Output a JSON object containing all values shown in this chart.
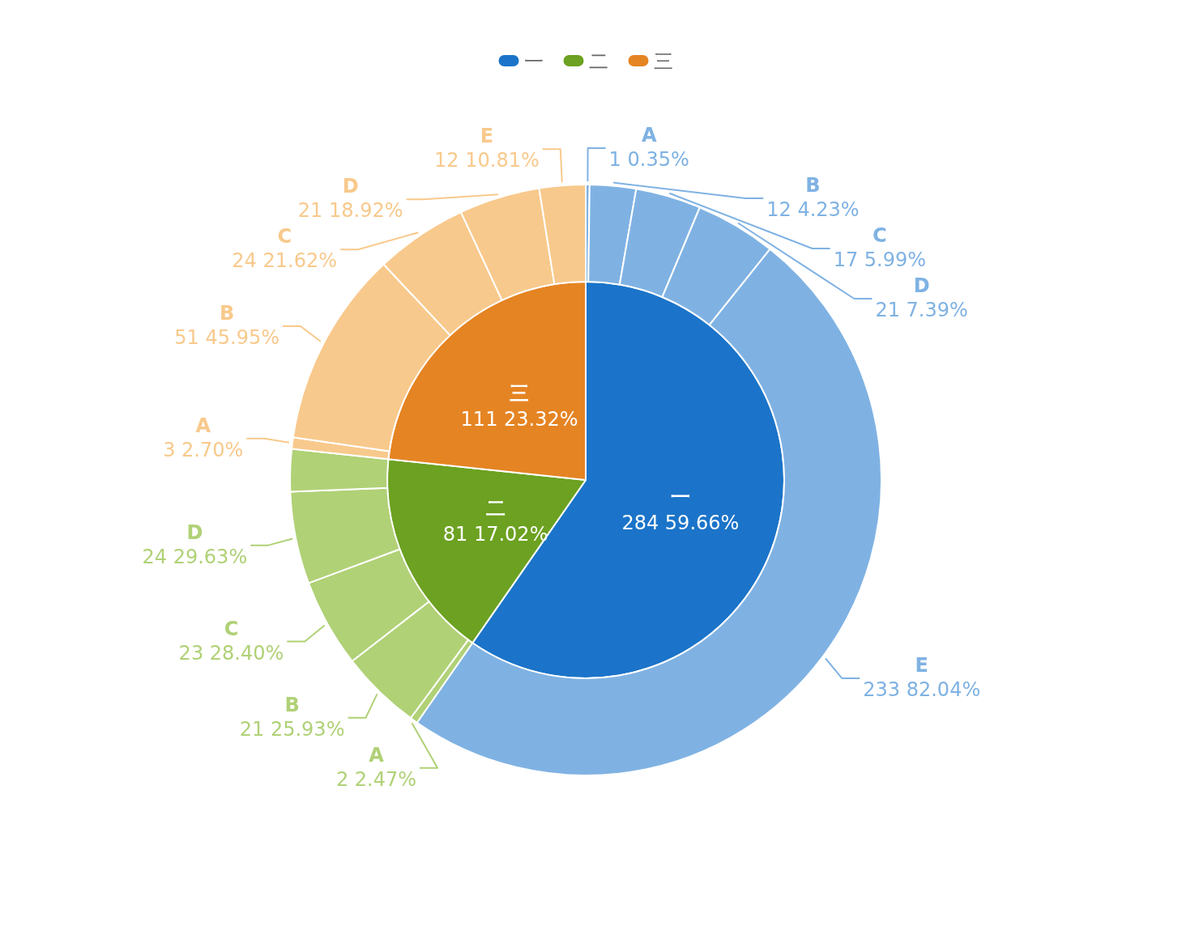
{
  "chart_data": [
    {
      "type": "pie",
      "categories": [
        "一",
        "二",
        "三"
      ],
      "values": [
        284,
        81,
        111
      ],
      "colors": [
        "#1b74c9",
        "#6ca121",
        "#e58423"
      ],
      "value_labels": [
        "284  59.66%",
        "81  17.02%",
        "111  23.32%"
      ],
      "legend": "top"
    },
    {
      "type": "donut",
      "categories": [
        "A",
        "B",
        "C",
        "D",
        "E",
        "A",
        "B",
        "C",
        "D",
        null,
        "A",
        "B",
        "C",
        "D",
        "E"
      ],
      "values": [
        1,
        12,
        17,
        21,
        233,
        2,
        21,
        23,
        24,
        11,
        3,
        51,
        24,
        21,
        12
      ],
      "colors": [
        "#7fb2e3",
        "#7fb2e3",
        "#7fb2e3",
        "#7fb2e3",
        "#7fb2e3",
        "#b0d176",
        "#b0d176",
        "#b0d176",
        "#b0d176",
        "#b0d176",
        "#f8c98c",
        "#f8c98c",
        "#f8c98c",
        "#f8c98c",
        "#f8c98c"
      ],
      "value_labels": [
        "1  0.35%",
        "12  4.23%",
        "17  5.99%",
        "21  7.39%",
        "233  82.04%",
        "2  2.47%",
        "21  25.93%",
        "23  28.40%",
        "24  29.63%",
        null,
        "3  2.70%",
        "51  45.95%",
        "24  21.62%",
        "21  18.92%",
        "12  10.81%"
      ]
    }
  ]
}
